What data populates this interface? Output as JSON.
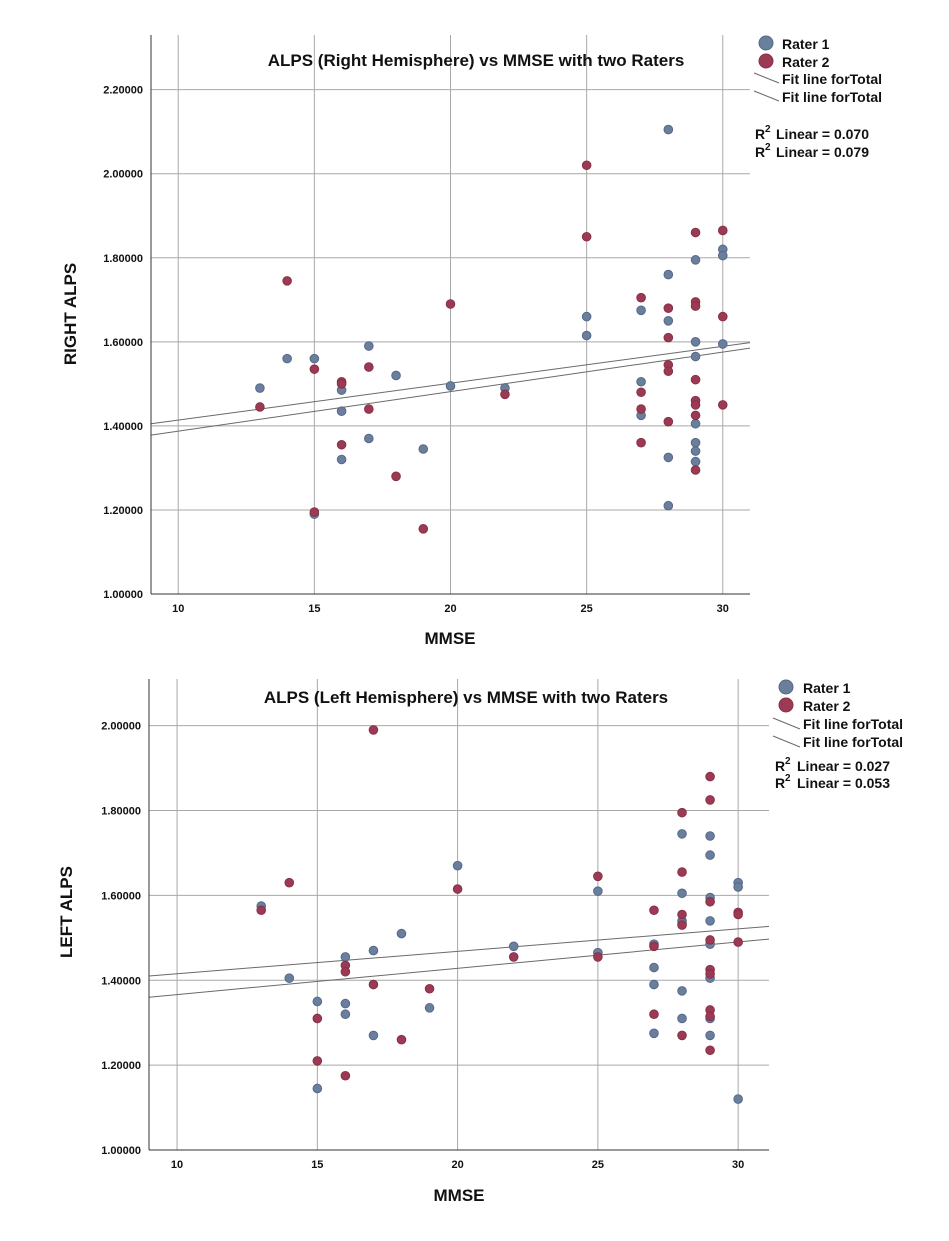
{
  "colors": {
    "rater1": "#6a7f9c",
    "rater2": "#9b3a55",
    "rater1_edge": "#56688a",
    "rater2_edge": "#8a2f45",
    "fit": "#6a6a6a",
    "grid": "#a8a8a8"
  },
  "chart_data": [
    {
      "type": "scatter",
      "title": "ALPS (Right Hemisphere) vs MMSE with two Raters",
      "xlabel": "MMSE",
      "ylabel": "RIGHT ALPS",
      "xlim": [
        9,
        31
      ],
      "ylim": [
        1.0,
        2.33
      ],
      "xticks": [
        10,
        15,
        20,
        25,
        30
      ],
      "xtick_labels": [
        "10",
        "15",
        "20",
        "25",
        "30"
      ],
      "yticks": [
        1.0,
        1.2,
        1.4,
        1.6,
        1.8,
        2.0,
        2.2
      ],
      "ytick_labels": [
        "1.00000",
        "1.20000",
        "1.40000",
        "1.60000",
        "1.80000",
        "2.00000",
        "2.20000"
      ],
      "grid": true,
      "legend_position": "right",
      "legend": {
        "series": [
          "Rater 1",
          "Rater 2"
        ],
        "fit_lines": [
          "Fit line forTotal",
          "Fit line forTotal"
        ],
        "r2_prefix": "R",
        "r2_sup": "2",
        "r2_labels": [
          "Linear = 0.070",
          "Linear = 0.079"
        ]
      },
      "series": [
        {
          "name": "Rater 1",
          "x": [
            13,
            14,
            15,
            15,
            16,
            16,
            16,
            17,
            17,
            18,
            19,
            20,
            22,
            25,
            25,
            27,
            27,
            27,
            28,
            28,
            28,
            28,
            28,
            29,
            29,
            29,
            29,
            29,
            29,
            29,
            30,
            30,
            30
          ],
          "y": [
            1.49,
            1.56,
            1.56,
            1.19,
            1.485,
            1.435,
            1.32,
            1.59,
            1.37,
            1.52,
            1.345,
            1.495,
            1.49,
            1.66,
            1.615,
            1.675,
            1.505,
            1.425,
            2.105,
            1.76,
            1.65,
            1.325,
            1.21,
            1.795,
            1.6,
            1.565,
            1.405,
            1.36,
            1.34,
            1.315,
            1.82,
            1.805,
            1.595
          ]
        },
        {
          "name": "Rater 2",
          "x": [
            13,
            14,
            15,
            15,
            16,
            16,
            16,
            17,
            17,
            18,
            19,
            20,
            22,
            25,
            25,
            27,
            27,
            27,
            27,
            28,
            28,
            28,
            28,
            28,
            29,
            29,
            29,
            29,
            29,
            29,
            29,
            29,
            30,
            30,
            30
          ],
          "y": [
            1.445,
            1.745,
            1.535,
            1.195,
            1.505,
            1.5,
            1.355,
            1.54,
            1.44,
            1.28,
            1.155,
            1.69,
            1.475,
            2.02,
            1.85,
            1.705,
            1.48,
            1.44,
            1.36,
            1.68,
            1.61,
            1.545,
            1.53,
            1.41,
            1.86,
            1.695,
            1.685,
            1.51,
            1.46,
            1.45,
            1.425,
            1.295,
            1.865,
            1.66,
            1.45
          ]
        }
      ],
      "fit_lines": [
        {
          "name": "Fit line forTotal",
          "x": [
            9,
            31
          ],
          "y": [
            1.405,
            1.598
          ]
        },
        {
          "name": "Fit line forTotal",
          "x": [
            9,
            31
          ],
          "y": [
            1.378,
            1.585
          ]
        }
      ]
    },
    {
      "type": "scatter",
      "title": "ALPS (Left Hemisphere) vs MMSE with two Raters",
      "xlabel": "MMSE",
      "ylabel": "LEFT ALPS",
      "xlim": [
        9,
        31.1
      ],
      "ylim": [
        1.0,
        2.11
      ],
      "xticks": [
        10,
        15,
        20,
        25,
        30
      ],
      "xtick_labels": [
        "10",
        "15",
        "20",
        "25",
        "30"
      ],
      "yticks": [
        1.0,
        1.2,
        1.4,
        1.6,
        1.8,
        2.0
      ],
      "ytick_labels": [
        "1.00000",
        "1.20000",
        "1.40000",
        "1.60000",
        "1.80000",
        "2.00000"
      ],
      "grid": true,
      "legend_position": "right",
      "legend": {
        "series": [
          "Rater 1",
          "Rater 2"
        ],
        "fit_lines": [
          "Fit line forTotal",
          "Fit line forTotal"
        ],
        "r2_prefix": "R",
        "r2_sup": "2",
        "r2_labels": [
          "Linear = 0.027",
          "Linear = 0.053"
        ]
      },
      "series": [
        {
          "name": "Rater 1",
          "x": [
            13,
            14,
            15,
            15,
            16,
            16,
            16,
            17,
            17,
            18,
            19,
            20,
            22,
            25,
            25,
            27,
            27,
            27,
            27,
            28,
            28,
            28,
            28,
            28,
            28,
            29,
            29,
            29,
            29,
            29,
            29,
            29,
            29,
            30,
            30,
            30
          ],
          "y": [
            1.575,
            1.405,
            1.35,
            1.145,
            1.455,
            1.345,
            1.32,
            1.47,
            1.27,
            1.51,
            1.335,
            1.67,
            1.48,
            1.61,
            1.465,
            1.485,
            1.43,
            1.39,
            1.275,
            1.745,
            1.605,
            1.54,
            1.375,
            1.31,
            1.535,
            1.74,
            1.695,
            1.595,
            1.54,
            1.485,
            1.405,
            1.31,
            1.27,
            1.63,
            1.62,
            1.12
          ]
        },
        {
          "name": "Rater 2",
          "x": [
            13,
            14,
            15,
            15,
            16,
            16,
            16,
            17,
            17,
            18,
            19,
            20,
            22,
            25,
            25,
            27,
            27,
            27,
            28,
            28,
            28,
            28,
            28,
            29,
            29,
            29,
            29,
            29,
            29,
            29,
            29,
            29,
            30,
            30,
            30
          ],
          "y": [
            1.565,
            1.63,
            1.31,
            1.21,
            1.435,
            1.42,
            1.175,
            1.99,
            1.39,
            1.26,
            1.38,
            1.615,
            1.455,
            1.645,
            1.455,
            1.565,
            1.48,
            1.32,
            1.795,
            1.655,
            1.555,
            1.53,
            1.27,
            1.88,
            1.825,
            1.585,
            1.495,
            1.425,
            1.415,
            1.33,
            1.315,
            1.235,
            1.56,
            1.555,
            1.49
          ]
        }
      ],
      "fit_lines": [
        {
          "name": "Fit line forTotal",
          "x": [
            9,
            31.1
          ],
          "y": [
            1.41,
            1.527
          ]
        },
        {
          "name": "Fit line forTotal",
          "x": [
            9,
            31.1
          ],
          "y": [
            1.36,
            1.497
          ]
        }
      ]
    }
  ]
}
